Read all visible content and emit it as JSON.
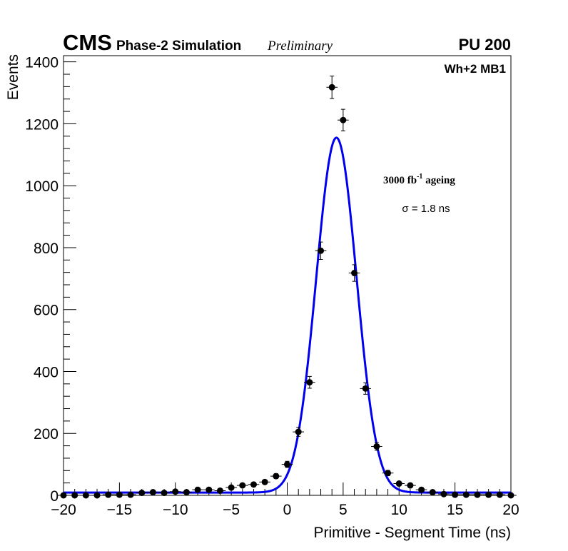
{
  "header": {
    "experiment": "CMS",
    "status": "Phase-2 Simulation",
    "preliminary": "Preliminary",
    "pileup": "PU 200"
  },
  "annotations": {
    "chamber": "Wh+2 MB1",
    "ageing_value": "3000 fb",
    "ageing_exp": "-1",
    "ageing_word": "ageing",
    "resolution": "σ = 1.8 ns"
  },
  "colors": {
    "markers": "#000000",
    "fit": "#0000ee"
  },
  "chart_data": {
    "type": "scatter",
    "title": "",
    "xlabel": "Primitive - Segment Time (ns)",
    "ylabel": "Events",
    "xlim": [
      -20,
      20
    ],
    "ylim": [
      0,
      1420
    ],
    "x_ticks": [
      -20,
      -15,
      -10,
      -5,
      0,
      5,
      10,
      15,
      20
    ],
    "x_tick_labels": [
      "−20",
      "−15",
      "−10",
      "−5",
      "0",
      "5",
      "10",
      "15",
      "20"
    ],
    "y_ticks": [
      0,
      200,
      400,
      600,
      800,
      1000,
      1200,
      1400
    ],
    "y_tick_labels": [
      "0",
      "200",
      "400",
      "600",
      "800",
      "1000",
      "1200",
      "1400"
    ],
    "bin_width": 1,
    "series": [
      {
        "name": "Simulation",
        "style": "markers-with-errors",
        "x": [
          -20,
          -19,
          -18,
          -17,
          -16,
          -15,
          -14,
          -13,
          -12,
          -11,
          -10,
          -9,
          -8,
          -7,
          -6,
          -5,
          -4,
          -3,
          -2,
          -1,
          0,
          1,
          2,
          3,
          4,
          5,
          6,
          7,
          8,
          9,
          10,
          11,
          12,
          13,
          14,
          15,
          16,
          17,
          18,
          19,
          20
        ],
        "y": [
          0,
          0,
          0,
          0,
          2,
          2,
          2,
          8,
          10,
          8,
          12,
          10,
          18,
          18,
          15,
          25,
          32,
          35,
          43,
          62,
          100,
          205,
          365,
          790,
          1318,
          1212,
          718,
          345,
          158,
          72,
          38,
          32,
          18,
          10,
          4,
          2,
          2,
          2,
          2,
          2,
          0
        ]
      },
      {
        "name": "Gaussian fit",
        "style": "line",
        "function": "gaussian",
        "constant": 1155,
        "mean": 4.4,
        "sigma": 1.8,
        "baseline": 9,
        "x_range": [
          -20,
          20
        ]
      }
    ]
  }
}
